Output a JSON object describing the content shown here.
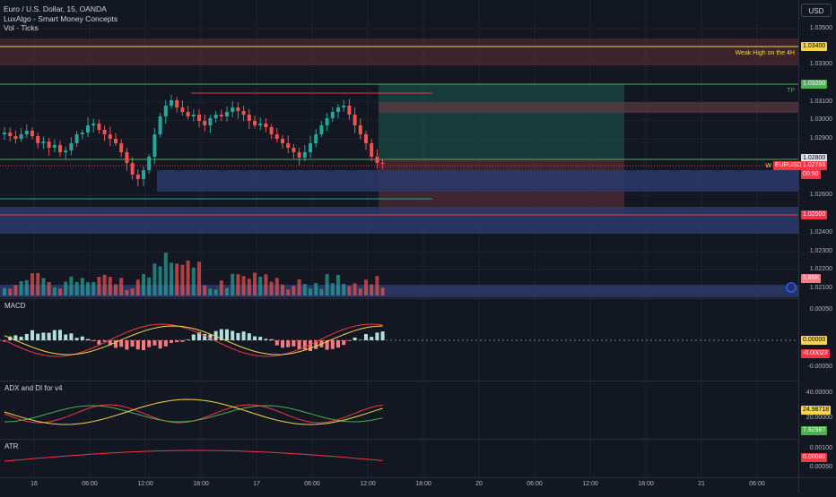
{
  "legend": {
    "symbol_line": "Euro / U.S. Dollar, 15, OANDA",
    "indicator_1": "LuxAlgo - Smart Money Concepts",
    "indicator_2": "Vol · Ticks"
  },
  "currency_button": "USD",
  "price_axis": {
    "ticks": [
      "1.03500",
      "1.03300",
      "1.03100",
      "1.03000",
      "1.02900",
      "1.02600",
      "1.02400",
      "1.02300",
      "1.02200",
      "1.02100"
    ],
    "tags": {
      "weak_high_price": "1.03400",
      "tp_price": "1.03200",
      "level_1": "1.02800",
      "symbol_tag": "EURUSD",
      "last_price": "1.02766",
      "countdown": "00:50",
      "sl_price": "1.02500",
      "volume": "1.85K"
    }
  },
  "annotations": {
    "weak_high_label": "Weak High on the 4H",
    "tp_label": "TP",
    "w_label": "W"
  },
  "panes": {
    "macd": {
      "title": "MACD",
      "ticks": [
        "0.00050",
        "-0.00050"
      ],
      "value_zero": "0.00000",
      "value_hist": "-0.00023"
    },
    "adx": {
      "title": "ADX and DI for v4",
      "ticks": [
        "40.00000",
        "20.00000"
      ],
      "value_adx": "24.98718",
      "value_di": "7.92987"
    },
    "atr": {
      "title": "ATR",
      "ticks": [
        "0.00100",
        "0.00050"
      ],
      "value_atr": "0.00080"
    }
  },
  "time_axis": [
    "16",
    "06:00",
    "12:00",
    "18:00",
    "17",
    "06:00",
    "12:00",
    "18:00",
    "20",
    "06:00",
    "12:00",
    "18:00",
    "21",
    "06:00"
  ],
  "colors": {
    "background": "#131722",
    "up_candle": "#26a69a",
    "down_candle": "#ef5350",
    "weak_high_line": "#f7d54a",
    "tp_line": "#4caf50",
    "sl_line": "#f23645",
    "demand_zone": "#2a3a6a"
  },
  "icons": [
    "chart-settings-icon"
  ]
}
